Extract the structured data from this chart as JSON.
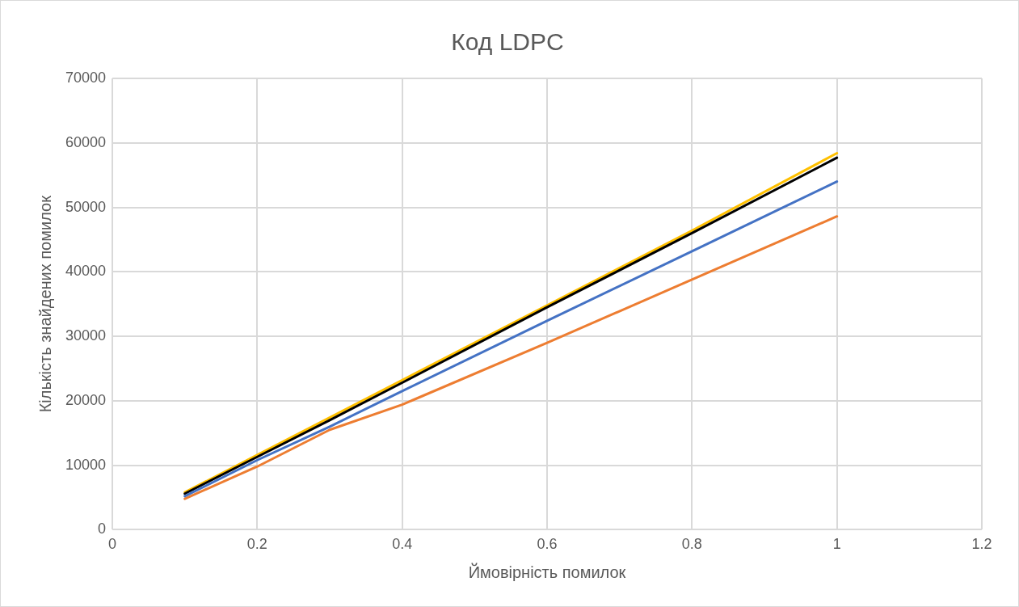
{
  "chart_data": {
    "type": "line",
    "title": "Код LDPC",
    "xlabel": "Ймовірність помилок",
    "ylabel": "Кількість знайдених помилок",
    "x": [
      0.1,
      0.2,
      0.3,
      0.4,
      0.6,
      0.8,
      1.0
    ],
    "series": [
      {
        "color": "#4472c4",
        "values": [
          5200,
          10800,
          16000,
          21500,
          32400,
          43200,
          54000
        ]
      },
      {
        "color": "#ed7d31",
        "values": [
          4800,
          9800,
          15500,
          19400,
          29000,
          38800,
          48600
        ]
      },
      {
        "color": "#000000",
        "values": [
          5600,
          11300,
          17000,
          22800,
          34500,
          46000,
          57700
        ]
      },
      {
        "color": "#ffc000",
        "values": [
          5800,
          11600,
          17400,
          23200,
          34800,
          46400,
          58400
        ]
      }
    ],
    "xlim": [
      0,
      1.2
    ],
    "xticks": [
      0,
      0.2,
      0.4,
      0.6,
      0.8,
      1,
      1.2
    ],
    "ylim": [
      0,
      70000
    ],
    "yticks": [
      0,
      10000,
      20000,
      30000,
      40000,
      50000,
      60000,
      70000
    ],
    "grid": true,
    "marker": "none",
    "line_style": "solid"
  }
}
